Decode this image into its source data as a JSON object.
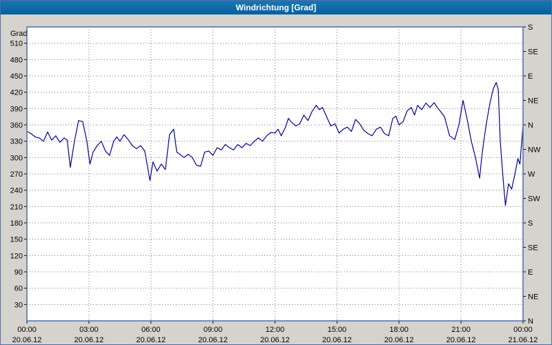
{
  "title": "Windrichtung [Grad]",
  "colors": {
    "titlebar": "#0b67a4",
    "window_background": "#d6d3ce",
    "plot_background": "#ffffff",
    "plot_border": "#4a6ea9",
    "gridline": "#6f6f6f",
    "line": "#000099",
    "text": "#000000"
  },
  "chart_data": {
    "type": "line",
    "title": "Windrichtung [Grad]",
    "ylabel": "Grad",
    "xlabel": "",
    "ylim": [
      0,
      540
    ],
    "xlim": [
      0,
      24
    ],
    "grid": true,
    "yticks": [
      30,
      60,
      90,
      120,
      150,
      180,
      210,
      240,
      270,
      300,
      330,
      360,
      390,
      420,
      450,
      480,
      510
    ],
    "right_axis": {
      "values": [
        540,
        495,
        450,
        405,
        360,
        315,
        270,
        225,
        180,
        135,
        90,
        45,
        0
      ],
      "labels": [
        "S",
        "SE",
        "E",
        "NE",
        "N",
        "NW",
        "W",
        "SW",
        "S",
        "SE",
        "E",
        "NE",
        "N"
      ]
    },
    "xticks": {
      "hours": [
        0,
        3,
        6,
        9,
        12,
        15,
        18,
        21,
        24
      ],
      "times": [
        "00:00",
        "03:00",
        "06:00",
        "09:00",
        "12:00",
        "15:00",
        "18:00",
        "21:00",
        "00:00"
      ],
      "dates": [
        "20.06.12",
        "20.06.12",
        "20.06.12",
        "20.06.12",
        "20.06.12",
        "20.06.12",
        "20.06.12",
        "20.06.12",
        "21.06.12"
      ]
    },
    "series": [
      {
        "name": "Windrichtung",
        "color": "#000099",
        "x": [
          0,
          0.2,
          0.4,
          0.6,
          0.8,
          1.0,
          1.2,
          1.4,
          1.6,
          1.8,
          1.95,
          2.1,
          2.3,
          2.5,
          2.7,
          2.9,
          3.05,
          3.2,
          3.4,
          3.6,
          3.8,
          4.0,
          4.2,
          4.35,
          4.5,
          4.7,
          4.9,
          5.1,
          5.3,
          5.5,
          5.7,
          5.95,
          6.1,
          6.3,
          6.5,
          6.7,
          6.9,
          7.1,
          7.25,
          7.4,
          7.6,
          7.8,
          8.0,
          8.2,
          8.4,
          8.6,
          8.8,
          9.0,
          9.2,
          9.4,
          9.6,
          9.8,
          10.0,
          10.2,
          10.4,
          10.6,
          10.8,
          11.0,
          11.2,
          11.4,
          11.6,
          11.8,
          12.0,
          12.15,
          12.3,
          12.5,
          12.65,
          12.8,
          13.0,
          13.2,
          13.4,
          13.6,
          13.8,
          14.0,
          14.15,
          14.3,
          14.5,
          14.7,
          14.9,
          15.1,
          15.3,
          15.5,
          15.7,
          15.9,
          16.1,
          16.3,
          16.5,
          16.7,
          16.9,
          17.1,
          17.3,
          17.5,
          17.7,
          17.85,
          18.0,
          18.2,
          18.4,
          18.6,
          18.75,
          18.9,
          19.1,
          19.3,
          19.5,
          19.7,
          19.85,
          20.0,
          20.2,
          20.45,
          20.7,
          20.9,
          21.1,
          21.3,
          21.5,
          21.7,
          21.9,
          22.0,
          22.1,
          22.25,
          22.4,
          22.55,
          22.7,
          22.8,
          22.9,
          23.05,
          23.15,
          23.3,
          23.45,
          23.6,
          23.75,
          23.85,
          24.0
        ],
        "y": [
          348,
          344,
          338,
          336,
          330,
          347,
          332,
          340,
          328,
          336,
          332,
          282,
          330,
          368,
          366,
          330,
          288,
          310,
          322,
          330,
          312,
          304,
          330,
          338,
          330,
          342,
          333,
          322,
          316,
          322,
          312,
          258,
          292,
          275,
          288,
          278,
          342,
          352,
          310,
          306,
          300,
          306,
          300,
          286,
          284,
          310,
          312,
          304,
          318,
          314,
          324,
          318,
          314,
          324,
          318,
          326,
          322,
          330,
          336,
          330,
          340,
          346,
          345,
          352,
          340,
          355,
          372,
          365,
          358,
          362,
          378,
          368,
          385,
          396,
          388,
          392,
          375,
          358,
          362,
          345,
          352,
          356,
          348,
          370,
          362,
          350,
          344,
          340,
          352,
          356,
          344,
          340,
          372,
          376,
          360,
          366,
          386,
          392,
          378,
          396,
          388,
          400,
          392,
          401,
          392,
          385,
          375,
          340,
          333,
          360,
          405,
          370,
          330,
          300,
          262,
          300,
          330,
          368,
          400,
          425,
          438,
          425,
          330,
          255,
          212,
          252,
          242,
          268,
          298,
          288,
          358
        ]
      }
    ]
  }
}
